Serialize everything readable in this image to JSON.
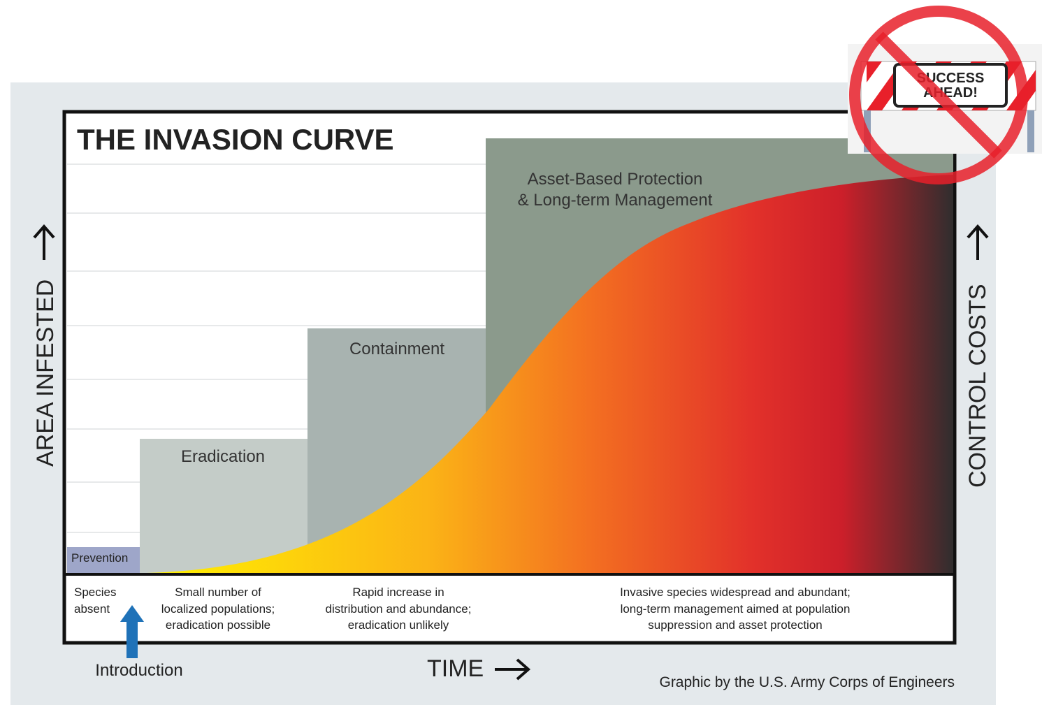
{
  "title": "THE INVASION CURVE",
  "y_axis_label": "AREA INFESTED",
  "y2_axis_label": "CONTROL COSTS",
  "x_axis_label": "TIME",
  "stages": [
    {
      "label": [
        "Prevention"
      ],
      "description": [
        "Species",
        "absent"
      ]
    },
    {
      "label": [
        "Eradication"
      ],
      "description": [
        "Small number of",
        "localized populations;",
        "eradication possible"
      ]
    },
    {
      "label": [
        "Containment"
      ],
      "description": [
        "Rapid increase in",
        "distribution and abundance;",
        "eradication unlikely"
      ]
    },
    {
      "label": [
        "Asset-Based Protection",
        "& Long-term Management"
      ],
      "description": [
        "Invasive species widespread and abundant;",
        "long-term management aimed at population",
        "suppression and asset protection"
      ]
    }
  ],
  "introduction": "Introduction",
  "credit": "Graphic by the U.S. Army Corps of Engineers",
  "sign": [
    "SUCCESS",
    "AHEAD!"
  ]
}
